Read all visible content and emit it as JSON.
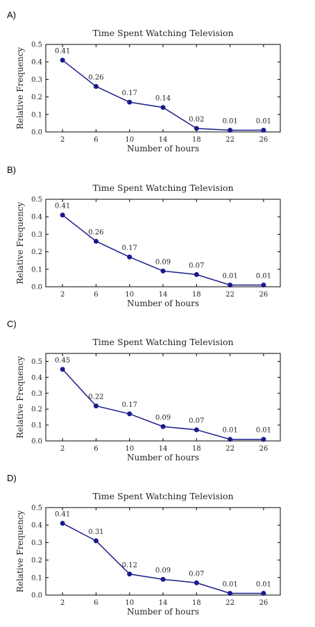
{
  "panels": [
    {
      "label": "A)"
    },
    {
      "label": "B)"
    },
    {
      "label": "C)"
    },
    {
      "label": "D)"
    }
  ],
  "chart_data": [
    {
      "type": "line",
      "title": "Time Spent Watching Television",
      "xlabel": "Number of hours",
      "ylabel": "Relative Frequency",
      "x": [
        2,
        6,
        10,
        14,
        18,
        22,
        26
      ],
      "values": [
        0.41,
        0.26,
        0.17,
        0.14,
        0.02,
        0.01,
        0.01
      ],
      "data_labels": [
        "0.41",
        "0.26",
        "0.17",
        "0.14",
        "0.02",
        "0.01",
        "0.01"
      ],
      "xlim": [
        0,
        28
      ],
      "ylim": [
        0,
        0.5
      ],
      "yticks": [
        "0.0",
        "0.1",
        "0.2",
        "0.3",
        "0.4",
        "0.5"
      ],
      "color": "#1a1a8c"
    },
    {
      "type": "line",
      "title": "Time Spent Watching Television",
      "xlabel": "Number of hours",
      "ylabel": "Relative Frequency",
      "x": [
        2,
        6,
        10,
        14,
        18,
        22,
        26
      ],
      "values": [
        0.41,
        0.26,
        0.17,
        0.09,
        0.07,
        0.01,
        0.01
      ],
      "data_labels": [
        "0.41",
        "0.26",
        "0.17",
        "0.09",
        "0.07",
        "0.01",
        "0.01"
      ],
      "xlim": [
        0,
        28
      ],
      "ylim": [
        0,
        0.5
      ],
      "yticks": [
        "0.0",
        "0.1",
        "0.2",
        "0.3",
        "0.4",
        "0.5"
      ],
      "color": "#1a1a8c"
    },
    {
      "type": "line",
      "title": "Time Spent Watching Television",
      "xlabel": "Number of hours",
      "ylabel": "Relative Frequency",
      "x": [
        2,
        6,
        10,
        14,
        18,
        22,
        26
      ],
      "values": [
        0.45,
        0.22,
        0.17,
        0.09,
        0.07,
        0.01,
        0.01
      ],
      "data_labels": [
        "0.45",
        "0.22",
        "0.17",
        "0.09",
        "0.07",
        "0.01",
        "0.01"
      ],
      "xlim": [
        0,
        28
      ],
      "ylim": [
        0,
        0.55
      ],
      "yticks": [
        "0.0",
        "0.1",
        "0.2",
        "0.3",
        "0.4",
        "0.5"
      ],
      "color": "#1a1a8c"
    },
    {
      "type": "line",
      "title": "Time Spent Watching Television",
      "xlabel": "Number of hours",
      "ylabel": "Relative Frequency",
      "x": [
        2,
        6,
        10,
        14,
        18,
        22,
        26
      ],
      "values": [
        0.41,
        0.31,
        0.12,
        0.09,
        0.07,
        0.01,
        0.01
      ],
      "data_labels": [
        "0.41",
        "0.31",
        "0.12",
        "0.09",
        "0.07",
        "0.01",
        "0.01"
      ],
      "xlim": [
        0,
        28
      ],
      "ylim": [
        0,
        0.5
      ],
      "yticks": [
        "0.0",
        "0.1",
        "0.2",
        "0.3",
        "0.4",
        "0.5"
      ],
      "color": "#1a1a8c"
    }
  ]
}
